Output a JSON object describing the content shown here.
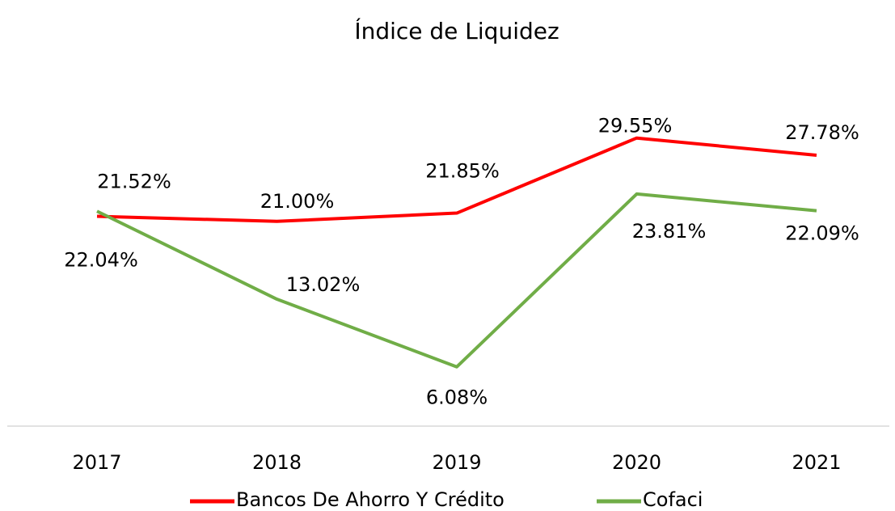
{
  "chart_data": {
    "type": "line",
    "title": "Índice de Liquidez",
    "categories": [
      "2017",
      "2018",
      "2019",
      "2020",
      "2021"
    ],
    "series": [
      {
        "name": "Bancos De Ahorro Y Crédito",
        "color": "#ff0000",
        "values": [
          21.52,
          21.0,
          21.85,
          29.55,
          27.78
        ],
        "value_labels": [
          "21.52%",
          "21.00%",
          "21.85%",
          "29.55%",
          "27.78%"
        ]
      },
      {
        "name": "Cofaci",
        "color": "#70ad47",
        "values": [
          22.04,
          13.02,
          6.08,
          23.81,
          22.09
        ],
        "value_labels": [
          "22.04%",
          "13.02%",
          "6.08%",
          "23.81%",
          "22.09%"
        ]
      }
    ],
    "ylim": [
      0,
      35
    ]
  }
}
